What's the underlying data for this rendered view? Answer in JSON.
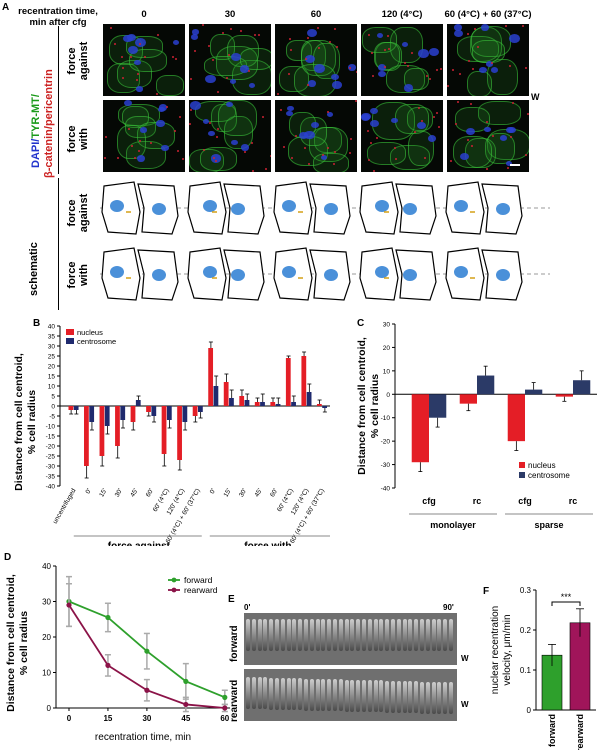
{
  "panel_a": {
    "letter": "A",
    "header_label": "recentration time,\nmin after cfg",
    "timepoints": [
      "0",
      "30",
      "60",
      "120 (4°C)",
      "60 (4°C) + 60 (37°C)"
    ],
    "stain_label_dapi": "DAPI/",
    "stain_label_tyr": "TYR-MT/",
    "stain_label_cat": "β-catenin/pericentrin",
    "row_force_against": "force\nagainst",
    "row_force_with": "force\nwith",
    "w_marker": "W",
    "schematic_label": "schematic"
  },
  "panel_b": {
    "letter": "B",
    "chart_data": {
      "type": "bar",
      "ylabel": "Distance from cell centroid,\n% cell radius",
      "ylim": [
        -40,
        40
      ],
      "yticks": [
        -40,
        -35,
        -30,
        -25,
        -20,
        -15,
        -10,
        -5,
        0,
        5,
        10,
        15,
        20,
        25,
        30,
        35,
        40
      ],
      "categories": [
        "uncentrifuged",
        "0'",
        "15'",
        "30'",
        "45'",
        "60'",
        "60' (4°C)",
        "120' (4°C)",
        "60' (4°C) + 60' (37°C)",
        "0'",
        "15'",
        "30'",
        "45'",
        "60'",
        "60' (4°C)",
        "120' (4°C)",
        "60' (4°C) + 60' (37°C)"
      ],
      "series": [
        {
          "name": "nucleus",
          "color": "#e41e26",
          "values": [
            -2,
            -30,
            -25,
            -20,
            -8,
            -3,
            -24,
            -27,
            -5,
            29,
            12,
            5,
            2,
            2,
            24,
            25,
            1
          ],
          "errors": [
            2,
            6,
            5,
            6,
            4,
            2,
            6,
            5,
            3,
            3,
            4,
            3,
            2,
            2,
            1,
            2,
            2
          ]
        },
        {
          "name": "centrosome",
          "color": "#1f2a6e",
          "values": [
            -2,
            -8,
            -10,
            -7,
            3,
            -5,
            -7,
            -8,
            -3,
            10,
            4,
            3,
            2,
            1,
            2,
            7,
            -1
          ],
          "errors": [
            2,
            4,
            4,
            4,
            2,
            3,
            4,
            4,
            3,
            5,
            4,
            3,
            4,
            3,
            3,
            4,
            2
          ]
        }
      ],
      "groups": [
        "force against",
        "force with"
      ],
      "legend": "top-left"
    }
  },
  "panel_c": {
    "letter": "C",
    "chart_data": {
      "type": "bar",
      "ylabel": "Distance from cell centroid,\n% cell radius",
      "ylim": [
        -40,
        30
      ],
      "yticks": [
        -40,
        -30,
        -20,
        -10,
        0,
        10,
        20,
        30
      ],
      "categories": [
        "cfg",
        "rc",
        "cfg",
        "rc"
      ],
      "groups": [
        "monolayer",
        "sparse"
      ],
      "series": [
        {
          "name": "nucleus",
          "color": "#e41e26",
          "values": [
            -29,
            -4,
            -20,
            -1
          ],
          "errors": [
            4,
            3,
            4,
            2
          ]
        },
        {
          "name": "centrosome",
          "color": "#2b3a67",
          "values": [
            -10,
            8,
            2,
            6
          ],
          "errors": [
            4,
            4,
            3,
            4
          ]
        }
      ],
      "legend": "bottom-right"
    }
  },
  "panel_d": {
    "letter": "D",
    "chart_data": {
      "type": "line",
      "xlabel": "recentration time, min",
      "ylabel": "Distance from cell centroid,\n% cell radius",
      "x": [
        0,
        15,
        30,
        45,
        60
      ],
      "xlim": [
        -5,
        62
      ],
      "ylim": [
        0,
        40
      ],
      "yticks": [
        0,
        10,
        20,
        30,
        40
      ],
      "series": [
        {
          "name": "forward",
          "color": "#2ea02c",
          "values": [
            30,
            25.5,
            16,
            7.5,
            3
          ],
          "errors": [
            7,
            4,
            5,
            5,
            2
          ]
        },
        {
          "name": "rearward",
          "color": "#8b1348",
          "values": [
            29,
            12,
            5,
            1,
            0
          ],
          "errors": [
            6,
            3,
            3,
            2,
            1
          ]
        }
      ],
      "legend": "top-right"
    }
  },
  "panel_e": {
    "letter": "E",
    "time_start": "0'",
    "time_end": "90'",
    "row_forward": "forward",
    "row_rearward": "rearward",
    "w_marker": "W"
  },
  "panel_f": {
    "letter": "F",
    "chart_data": {
      "type": "bar",
      "ylabel": "nuclear recentration\nvelocity, μm/min",
      "ylim": [
        0,
        0.3
      ],
      "yticks": [
        0,
        0.1,
        0.2,
        0.3
      ],
      "categories": [
        "forward",
        "rearward"
      ],
      "values": [
        0.137,
        0.218
      ],
      "errors": [
        0.027,
        0.035
      ],
      "colors": [
        "#2ea02c",
        "#a0155a"
      ],
      "significance": "***"
    }
  }
}
